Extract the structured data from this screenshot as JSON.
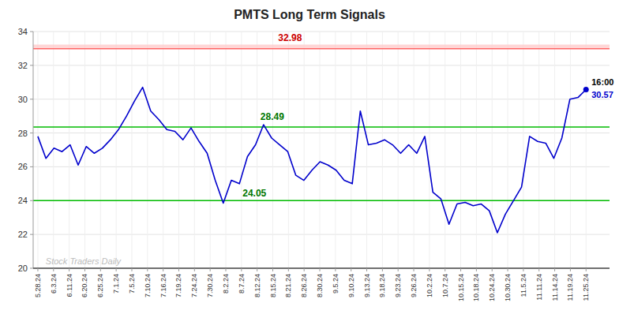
{
  "chart_data": {
    "type": "line",
    "title": "PMTS Long Term Signals",
    "x": [
      0,
      0.514706,
      1.029412,
      1.544118,
      2.058824,
      2.573529,
      3.088235,
      3.602941,
      4.117647,
      4.632353,
      5.147059,
      5.661765,
      6.176471,
      6.691176,
      7.205882,
      7.720588,
      8.235294,
      8.75,
      9.264706,
      9.779412,
      10.294118,
      10.808824,
      11.323529,
      11.838235,
      12.352941,
      12.867647,
      13.382353,
      13.897059,
      14.411765,
      14.926471,
      15.441176,
      15.955882,
      16.470588,
      16.985294,
      17.5,
      18.014706,
      18.529412,
      19.044118,
      19.558824,
      20.073529,
      20.588235,
      21.102941,
      21.617647,
      22.132353,
      22.647059,
      23.161765,
      23.676471,
      24.191176,
      24.705882,
      25.220588,
      25.735294,
      26.25,
      26.764706,
      27.279412,
      27.794118,
      28.308824,
      28.823529,
      29.338235,
      29.852941,
      30.367647,
      30.882353,
      31.397059,
      31.911765,
      32.426471,
      32.941176,
      33.455882,
      33.970588,
      34.485294,
      35
    ],
    "values": [
      27.8,
      26.5,
      27.1,
      26.9,
      27.3,
      26.1,
      27.2,
      26.8,
      27.1,
      27.6,
      28.2,
      29.0,
      29.9,
      30.7,
      29.3,
      28.8,
      28.2,
      28.1,
      27.6,
      28.3,
      27.5,
      26.8,
      25.2,
      23.85,
      25.2,
      25.0,
      26.6,
      27.3,
      28.49,
      27.7,
      27.3,
      26.9,
      25.5,
      25.2,
      25.8,
      26.3,
      26.1,
      25.8,
      25.2,
      25.0,
      29.3,
      27.3,
      27.4,
      27.6,
      27.3,
      26.8,
      27.3,
      26.8,
      27.8,
      24.5,
      24.1,
      22.6,
      23.8,
      23.9,
      23.7,
      23.8,
      23.4,
      22.1,
      23.2,
      24.0,
      24.8,
      27.8,
      27.5,
      27.4,
      26.5,
      27.7,
      30.0,
      30.1,
      30.57
    ],
    "color": "#0000cc",
    "marker": "last",
    "xlim": [
      -0.3,
      36.5
    ],
    "xticks": [
      {
        "value": 0,
        "label": "5.28.24"
      },
      {
        "value": 1,
        "label": "6.3.24"
      },
      {
        "value": 2,
        "label": "6.11.24"
      },
      {
        "value": 3,
        "label": "6.20.24"
      },
      {
        "value": 4,
        "label": "6.25.24"
      },
      {
        "value": 5,
        "label": "7.1.24"
      },
      {
        "value": 6,
        "label": "7.5.24"
      },
      {
        "value": 7,
        "label": "7.10.24"
      },
      {
        "value": 8,
        "label": "7.16.24"
      },
      {
        "value": 9,
        "label": "7.19.24"
      },
      {
        "value": 10,
        "label": "7.24.24"
      },
      {
        "value": 11,
        "label": "7.30.24"
      },
      {
        "value": 12,
        "label": "8.2.24"
      },
      {
        "value": 13,
        "label": "8.7.24"
      },
      {
        "value": 14,
        "label": "8.12.24"
      },
      {
        "value": 15,
        "label": "8.15.24"
      },
      {
        "value": 16,
        "label": "8.21.24"
      },
      {
        "value": 17,
        "label": "8.26.24"
      },
      {
        "value": 18,
        "label": "8.30.24"
      },
      {
        "value": 19,
        "label": "9.5.24"
      },
      {
        "value": 20,
        "label": "9.10.24"
      },
      {
        "value": 21,
        "label": "9.13.24"
      },
      {
        "value": 22,
        "label": "9.18.24"
      },
      {
        "value": 23,
        "label": "9.23.24"
      },
      {
        "value": 24,
        "label": "9.26.24"
      },
      {
        "value": 25,
        "label": "10.2.24"
      },
      {
        "value": 26,
        "label": "10.7.24"
      },
      {
        "value": 27,
        "label": "10.15.24"
      },
      {
        "value": 28,
        "label": "10.18.24"
      },
      {
        "value": 29,
        "label": "10.24.24"
      },
      {
        "value": 30,
        "label": "10.30.24"
      },
      {
        "value": 31,
        "label": "11.5.24"
      },
      {
        "value": 32,
        "label": "11.11.24"
      },
      {
        "value": 33,
        "label": "11.14.24"
      },
      {
        "value": 34,
        "label": "11.19.24"
      },
      {
        "value": 35,
        "label": "11.25.24"
      }
    ],
    "ylim": [
      20,
      34
    ],
    "yticks": [
      20,
      22,
      24,
      26,
      28,
      30,
      32,
      34
    ],
    "grid": true,
    "reference_lines": [
      {
        "value": 32.98,
        "color": "#ff6666"
      },
      {
        "value": 28.35,
        "color": "#00bb00"
      },
      {
        "value": 24.0,
        "color": "#00bb00"
      }
    ],
    "bands": [
      {
        "from": 32.98,
        "to": 33.23,
        "color": "#ffcccc"
      }
    ],
    "annotations": [
      {
        "text": "32.98",
        "color": "#cc0000",
        "x": 16.1,
        "y": 32.98
      },
      {
        "text": "28.49",
        "color": "#007700",
        "x": 14.411765,
        "y": 28.49
      },
      {
        "text": "24.05",
        "color": "#007700",
        "x": 12.867647,
        "y": 24.05
      },
      {
        "text": "16:00",
        "color": "#000000",
        "x": 35,
        "y": 30.57
      },
      {
        "text": "30.57",
        "color": "#0000cc",
        "x": 35,
        "y": 30.57
      },
      {
        "text": "Stock Traders Daily",
        "color": "#bbbbbb",
        "x": 0.5,
        "y": 20
      }
    ]
  }
}
